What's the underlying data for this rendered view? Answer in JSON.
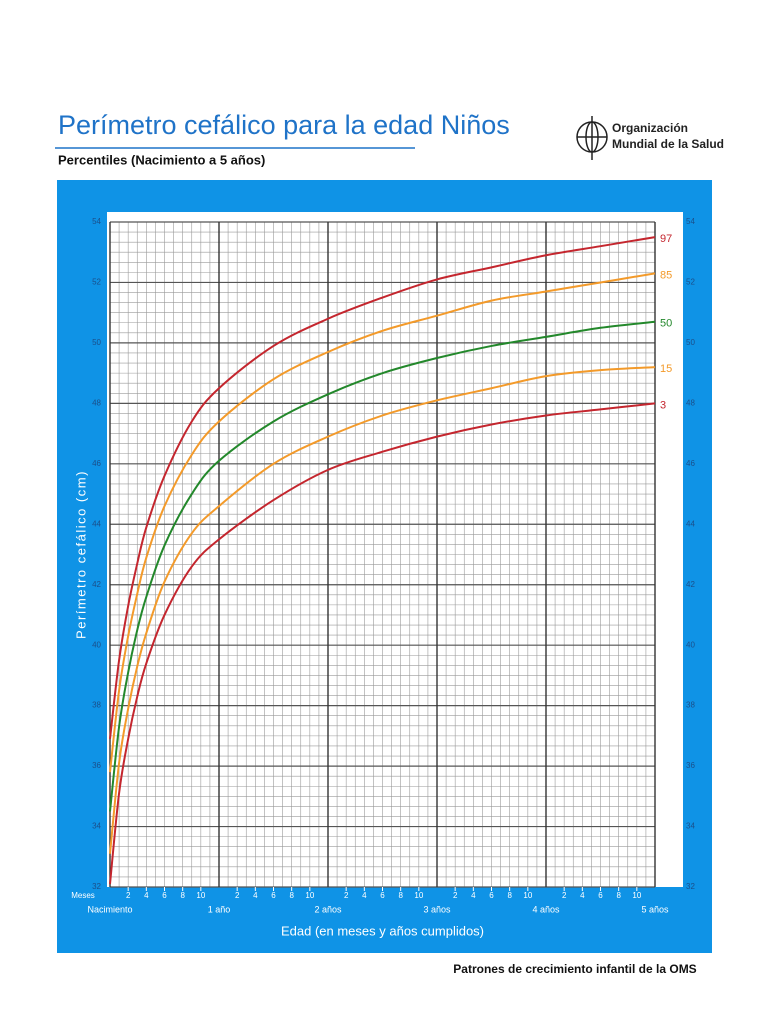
{
  "chart_data": {
    "type": "line",
    "title": "Perímetro cefálico para la edad  Niños",
    "subtitle": "Percentiles (Nacimiento a 5 años)",
    "logo_text": [
      "Organización",
      "Mundial de la Salud"
    ],
    "footer": "Patrones de crecimiento infantil de la OMS",
    "y_label": "Perímetro cefálico (cm)",
    "x_label": "Edad (en meses y años cumplidos)",
    "x_unit_label": "Meses",
    "x": [
      0,
      1,
      2,
      3,
      4,
      6,
      9,
      12,
      18,
      24,
      30,
      36,
      42,
      48,
      54,
      60
    ],
    "series": [
      {
        "name": "97",
        "color": "#c4262e",
        "values": [
          36.9,
          39.5,
          41.3,
          42.7,
          43.9,
          45.6,
          47.4,
          48.5,
          49.9,
          50.8,
          51.5,
          52.1,
          52.5,
          52.9,
          53.2,
          53.5
        ]
      },
      {
        "name": "85",
        "color": "#f39a2a",
        "values": [
          35.8,
          38.5,
          40.3,
          41.7,
          42.9,
          44.6,
          46.3,
          47.4,
          48.8,
          49.7,
          50.4,
          50.9,
          51.4,
          51.7,
          52.0,
          52.3
        ]
      },
      {
        "name": "50",
        "color": "#23882b",
        "values": [
          34.5,
          37.3,
          39.1,
          40.5,
          41.6,
          43.3,
          45.0,
          46.1,
          47.4,
          48.3,
          49.0,
          49.5,
          49.9,
          50.2,
          50.5,
          50.7
        ]
      },
      {
        "name": "15",
        "color": "#f39a2a",
        "values": [
          33.1,
          36.1,
          37.9,
          39.3,
          40.4,
          42.1,
          43.7,
          44.6,
          46.0,
          46.9,
          47.6,
          48.1,
          48.5,
          48.9,
          49.1,
          49.2
        ]
      },
      {
        "name": "3",
        "color": "#c4262e",
        "values": [
          32.1,
          35.1,
          36.9,
          38.3,
          39.4,
          41.0,
          42.6,
          43.5,
          44.8,
          45.8,
          46.4,
          46.9,
          47.3,
          47.6,
          47.8,
          48.0
        ]
      }
    ],
    "xlim": [
      0,
      60
    ],
    "ylim": [
      32,
      54
    ],
    "yticks": [
      32,
      34,
      36,
      38,
      40,
      42,
      44,
      46,
      48,
      50,
      52,
      54
    ],
    "xticks": [
      2,
      4,
      6,
      8,
      10,
      {
        "value": 14,
        "label": "2"
      },
      {
        "value": 16,
        "label": "4"
      },
      {
        "value": 18,
        "label": "6"
      },
      {
        "value": 20,
        "label": "8"
      },
      {
        "value": 22,
        "label": "10"
      },
      {
        "value": 26,
        "label": "2"
      },
      {
        "value": 28,
        "label": "4"
      },
      {
        "value": 30,
        "label": "6"
      },
      {
        "value": 32,
        "label": "8"
      },
      {
        "value": 34,
        "label": "10"
      },
      {
        "value": 38,
        "label": "2"
      },
      {
        "value": 40,
        "label": "4"
      },
      {
        "value": 42,
        "label": "6"
      },
      {
        "value": 44,
        "label": "8"
      },
      {
        "value": 46,
        "label": "10"
      },
      {
        "value": 50,
        "label": "2"
      },
      {
        "value": 52,
        "label": "4"
      },
      {
        "value": 54,
        "label": "6"
      },
      {
        "value": 56,
        "label": "8"
      },
      {
        "value": 58,
        "label": "10"
      }
    ],
    "x_major_ticks": [
      {
        "value": 0,
        "label": "Nacimiento"
      },
      {
        "value": 12,
        "label": "1 año"
      },
      {
        "value": 24,
        "label": "2 años"
      },
      {
        "value": 36,
        "label": "3 años"
      },
      {
        "value": 48,
        "label": "4 años"
      },
      {
        "value": 60,
        "label": "5 años"
      }
    ],
    "grid": true
  }
}
